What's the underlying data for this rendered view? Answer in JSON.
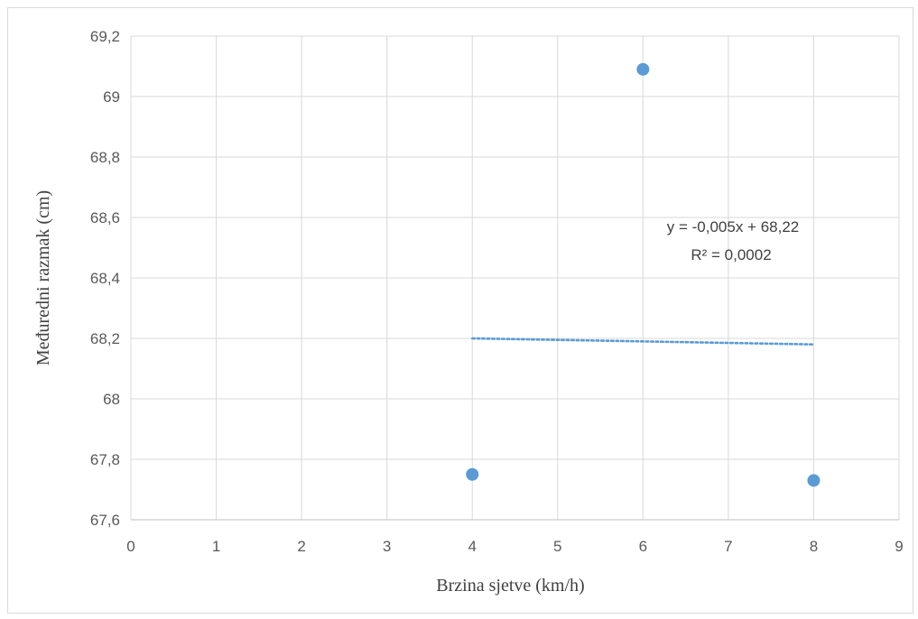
{
  "chart_data": {
    "type": "scatter",
    "title": "",
    "xlabel": "Brzina sjetve (km/h)",
    "ylabel": "Međuredni razmak (cm)",
    "xlim": [
      0,
      9
    ],
    "ylim": [
      67.6,
      69.2
    ],
    "xticks": [
      "0",
      "1",
      "2",
      "3",
      "4",
      "5",
      "6",
      "7",
      "8",
      "9"
    ],
    "yticks": [
      "67,6",
      "67,8",
      "68",
      "68,2",
      "68,4",
      "68,6",
      "68,8",
      "69",
      "69,2"
    ],
    "grid": true,
    "series": [
      {
        "x": [
          4,
          6,
          8
        ],
        "y": [
          67.75,
          69.09,
          67.73
        ],
        "color": "#5b9bd5"
      }
    ],
    "trendline": {
      "type": "linear",
      "slope": -0.005,
      "intercept": 68.22,
      "x_range": [
        4,
        8
      ],
      "color": "#5b9bd5",
      "style": "dotted",
      "equation_label": "y = -0,005x + 68,22",
      "r2_label": "R² = 0,0002"
    }
  }
}
